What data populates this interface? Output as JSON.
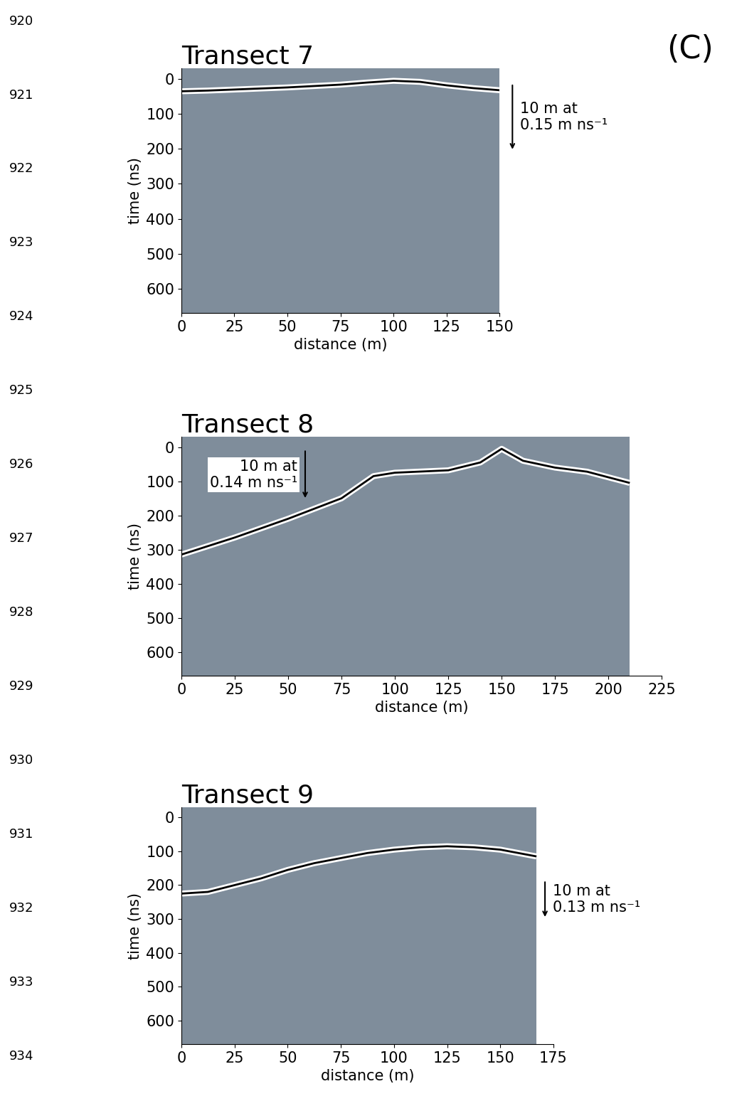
{
  "line_numbers": [
    920,
    921,
    922,
    923,
    924,
    925,
    926,
    927,
    928,
    929,
    930,
    931,
    932,
    933,
    934
  ],
  "panel_label": "(C)",
  "chart_data": [
    {
      "type": "radargram",
      "title": "Transect 7",
      "x_label": "distance (m)",
      "y_label": "time (ns)",
      "xlim": [
        0,
        150
      ],
      "xticks": [
        0,
        25,
        50,
        75,
        100,
        125,
        150
      ],
      "ylim": [
        -30,
        670
      ],
      "yticks": [
        0,
        100,
        200,
        300,
        400,
        500,
        600
      ],
      "profile_length": 150,
      "color": "#7f8d9b",
      "x": [
        0,
        12.5,
        25,
        37.5,
        50,
        62.5,
        75,
        87.5,
        100,
        112.5,
        125,
        137.5,
        150
      ],
      "values": [
        35,
        33,
        30,
        27,
        24,
        20,
        16,
        10,
        5,
        8,
        18,
        26,
        32
      ],
      "annotation": {
        "text": "10 m at\n0.15 m ns⁻¹",
        "x": 156,
        "from": 12,
        "to": 207
      }
    },
    {
      "type": "radargram",
      "title": "Transect 8",
      "x_label": "distance (m)",
      "y_label": "time (ns)",
      "xlim": [
        0,
        225
      ],
      "xticks": [
        0,
        25,
        50,
        75,
        100,
        125,
        150,
        175,
        200,
        225
      ],
      "ylim": [
        -30,
        670
      ],
      "yticks": [
        0,
        100,
        200,
        300,
        400,
        500,
        600
      ],
      "profile_length": 210,
      "color": "#7f8d9b",
      "x": [
        0,
        25,
        50,
        75,
        90,
        100,
        125,
        140,
        150,
        160,
        175,
        190,
        210
      ],
      "values": [
        315,
        265,
        210,
        150,
        85,
        75,
        68,
        45,
        5,
        40,
        60,
        72,
        105
      ],
      "annotation": {
        "text": "10 m at\n0.14 m ns⁻¹",
        "x": 58,
        "from": 6,
        "to": 155
      }
    },
    {
      "type": "radargram",
      "title": "Transect 9",
      "x_label": "distance (m)",
      "y_label": "time (ns)",
      "xlim": [
        0,
        175
      ],
      "xticks": [
        0,
        25,
        50,
        75,
        100,
        125,
        150,
        175
      ],
      "ylim": [
        -30,
        670
      ],
      "yticks": [
        0,
        100,
        200,
        300,
        400,
        500,
        600
      ],
      "profile_length": 167,
      "color": "#7f8d9b",
      "x": [
        0,
        12.5,
        25,
        37.5,
        50,
        62.5,
        75,
        87.5,
        100,
        112.5,
        125,
        137.5,
        150,
        167
      ],
      "values": [
        225,
        220,
        200,
        180,
        155,
        135,
        120,
        105,
        95,
        88,
        85,
        88,
        95,
        115
      ],
      "annotation": {
        "text": "10 m at\n0.13 m ns⁻¹",
        "x": 171,
        "from": 185,
        "to": 300
      }
    }
  ]
}
